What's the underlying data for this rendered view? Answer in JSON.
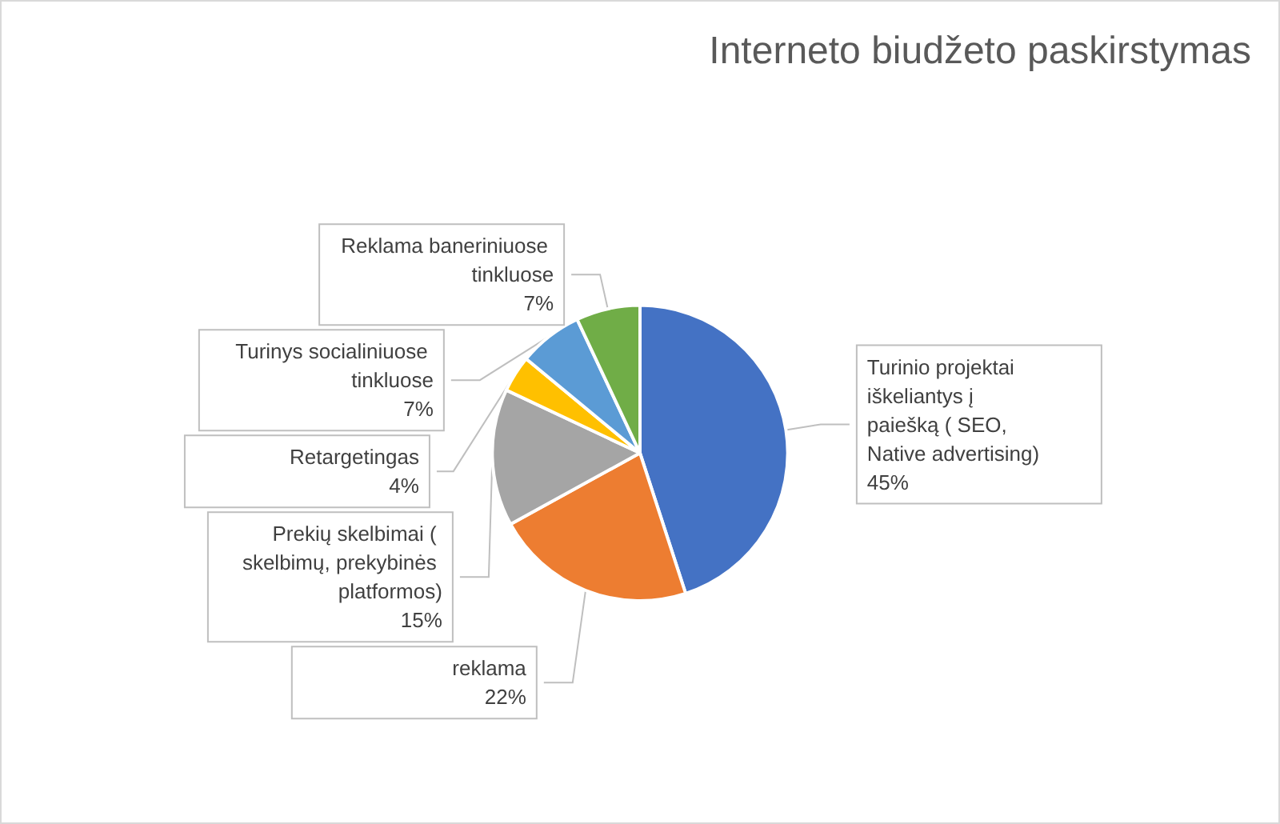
{
  "chart_data": {
    "type": "pie",
    "title": "Interneto biudžeto paskirstymas",
    "categories": [
      "Turinio projektai iškeliantys į paiešką ( SEO, Native advertising)",
      "reklama",
      "Prekių skelbimai ( skelbimų, prekybinės platformos)",
      "Retargetingas",
      "Turinys socialiniuose tinkluose",
      "Reklama baneriniuose tinkluose"
    ],
    "values": [
      45,
      22,
      15,
      4,
      7,
      7
    ],
    "value_labels": [
      "45%",
      "22%",
      "15%",
      "4%",
      "7%",
      "7%"
    ],
    "colors": [
      "#4472c4",
      "#ed7d31",
      "#a5a5a5",
      "#ffc000",
      "#5b9bd5",
      "#70ad47"
    ],
    "legend": false
  }
}
